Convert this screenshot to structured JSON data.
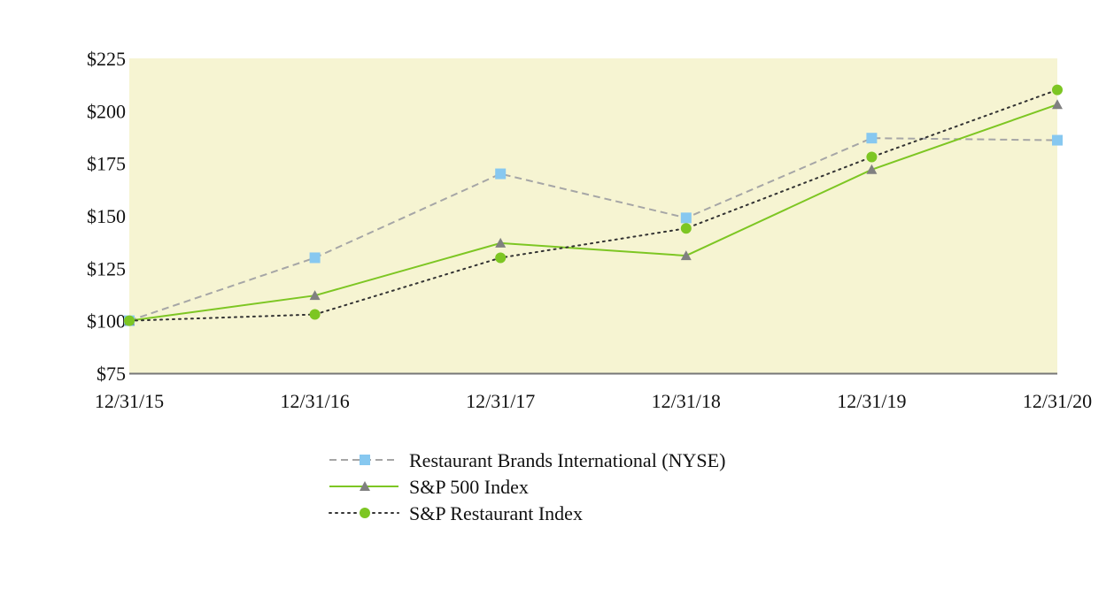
{
  "chart_data": {
    "type": "line",
    "categories": [
      "12/31/15",
      "12/31/16",
      "12/31/17",
      "12/31/18",
      "12/31/19",
      "12/31/20"
    ],
    "ylim": [
      75,
      225
    ],
    "yticks": [
      75,
      100,
      125,
      150,
      175,
      200,
      225
    ],
    "y_tick_labels": [
      "$75",
      "$100",
      "$125",
      "$150",
      "$175",
      "$200",
      "$225"
    ],
    "plot_background": "#f6f4d2",
    "grid": false,
    "legend_position": "bottom-center",
    "series": [
      {
        "name": "Restaurant Brands International (NYSE)",
        "values": [
          100,
          130,
          170,
          149,
          187,
          186
        ],
        "color": "#a6a6a6",
        "marker_color": "#87c8f0",
        "marker": "square",
        "line_style": "dashed"
      },
      {
        "name": "S&P 500 Index",
        "values": [
          100,
          112,
          137,
          131,
          172,
          203
        ],
        "color": "#7dc623",
        "marker_color": "#808080",
        "marker": "triangle",
        "line_style": "solid"
      },
      {
        "name": "S&P Restaurant Index",
        "values": [
          100,
          103,
          130,
          144,
          178,
          210
        ],
        "color": "#333333",
        "marker_color": "#7dc623",
        "marker": "circle",
        "line_style": "dotted"
      }
    ]
  }
}
